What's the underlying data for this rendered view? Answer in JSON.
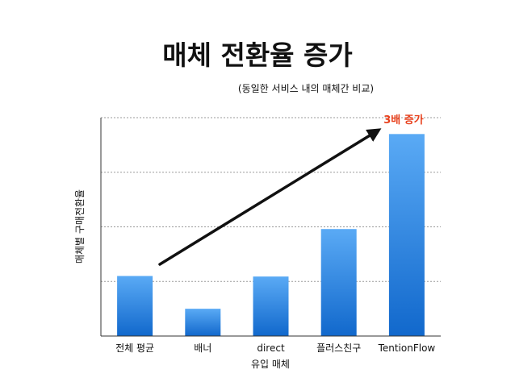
{
  "chart_data": {
    "type": "bar",
    "title": "매체 전환율 증가",
    "subtitle": "(동일한 서비스 내의 매체간 비교)",
    "xlabel": "유입 매체",
    "ylabel": "매체별 구매전환율",
    "categories": [
      "전체 평균",
      "배너",
      "direct",
      "플러스친구",
      "TentionFlow"
    ],
    "values": [
      1.1,
      0.5,
      1.09,
      1.96,
      3.7
    ],
    "ylim": [
      0,
      4
    ],
    "y_gridlines": [
      1,
      2,
      3,
      4
    ],
    "grid": true,
    "legend": "none",
    "annotation": {
      "text": "3배 증가",
      "color": "#e8401c"
    },
    "colors": {
      "bar_top": "#5aaaf5",
      "bar_bottom": "#1168cc",
      "grid": "#9a9a9a",
      "axis": "#333333",
      "arrow": "#111111"
    }
  }
}
